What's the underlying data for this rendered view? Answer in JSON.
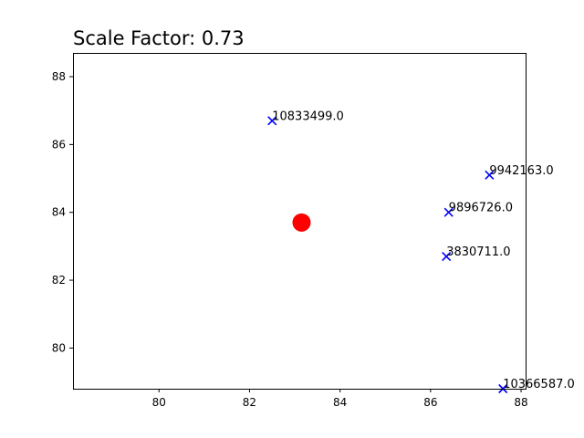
{
  "chart_data": {
    "type": "scatter",
    "title": "Scale Factor: 0.73",
    "xlabel": "",
    "ylabel": "",
    "xlim": [
      78.1,
      88.1
    ],
    "ylim": [
      78.8,
      88.7
    ],
    "xticks": [
      "80",
      "82",
      "84",
      "86",
      "88"
    ],
    "yticks": [
      "80",
      "82",
      "84",
      "86",
      "88"
    ],
    "grid": false,
    "series": [
      {
        "marker": "x",
        "color": "#0000ff",
        "points": [
          {
            "x": 82.5,
            "y": 86.7,
            "label": "10833499.0"
          },
          {
            "x": 87.3,
            "y": 85.1,
            "label": "9942163.0"
          },
          {
            "x": 86.4,
            "y": 84.0,
            "label": "9896726.0"
          },
          {
            "x": 86.35,
            "y": 82.7,
            "label": "3830711.0"
          },
          {
            "x": 87.6,
            "y": 78.8,
            "label": "10366587.0"
          }
        ]
      },
      {
        "marker": "o",
        "color": "#ff0000",
        "points": [
          {
            "x": 83.15,
            "y": 83.7
          }
        ]
      }
    ]
  }
}
